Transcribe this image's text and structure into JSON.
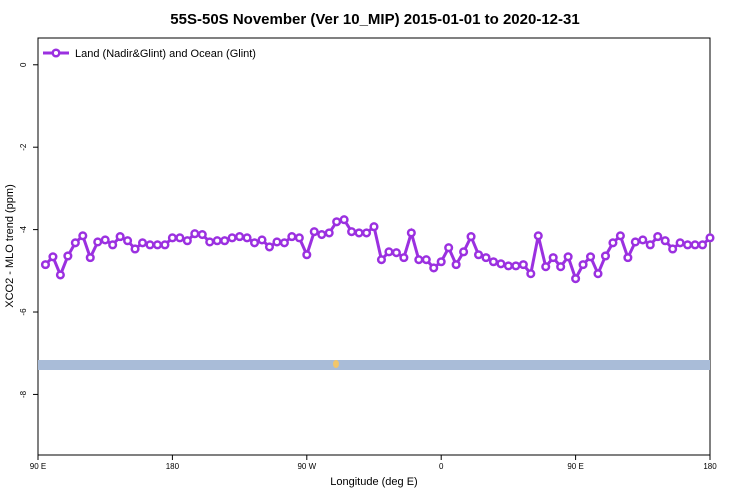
{
  "chart_data": {
    "type": "line",
    "title": "55S-50S November (Ver 10_MIP)   2015-01-01 to 2020-12-31",
    "x_label": "Longitude (deg E)",
    "y_label": "XCO2 - MLO trend (ppm)",
    "xlim": [
      90,
      540
    ],
    "ylim": [
      -9.47,
      0.65
    ],
    "xticks": [
      {
        "value": 90,
        "label": "90 E"
      },
      {
        "value": 180,
        "label": "180"
      },
      {
        "value": 270,
        "label": "90 W"
      },
      {
        "value": 360,
        "label": "0"
      },
      {
        "value": 450,
        "label": "90 E"
      },
      {
        "value": 540,
        "label": "180"
      }
    ],
    "yticks": [
      0,
      -2,
      -4,
      -6,
      -8
    ],
    "legend": "top-left",
    "x": [
      95,
      100,
      105,
      110,
      115,
      120,
      125,
      130,
      135,
      140,
      145,
      150,
      155,
      160,
      165,
      170,
      175,
      180,
      185,
      190,
      195,
      200,
      205,
      210,
      215,
      220,
      225,
      230,
      235,
      240,
      245,
      250,
      255,
      260,
      265,
      270,
      275,
      280,
      285,
      290,
      295,
      300,
      305,
      310,
      315,
      320,
      325,
      330,
      335,
      340,
      345,
      350,
      355,
      360,
      365,
      370,
      375,
      380,
      385,
      390,
      395,
      400,
      405,
      410,
      415,
      420,
      425,
      430,
      435,
      440,
      445,
      450,
      455,
      460,
      465,
      470,
      475,
      480,
      485,
      490,
      495,
      500,
      505,
      510,
      515,
      520,
      525,
      530,
      535,
      540
    ],
    "series": [
      {
        "name": "Land (Nadir&Glint) and Ocean (Glint)",
        "color": "#9b30e0",
        "values": [
          -4.85,
          -4.66,
          -5.1,
          -4.64,
          -4.32,
          -4.15,
          -4.68,
          -4.3,
          -4.25,
          -4.37,
          -4.17,
          -4.27,
          -4.47,
          -4.32,
          -4.37,
          -4.37,
          -4.37,
          -4.2,
          -4.2,
          -4.27,
          -4.1,
          -4.12,
          -4.3,
          -4.27,
          -4.27,
          -4.2,
          -4.17,
          -4.2,
          -4.32,
          -4.25,
          -4.42,
          -4.3,
          -4.32,
          -4.17,
          -4.2,
          -4.61,
          -4.05,
          -4.12,
          -4.08,
          -3.81,
          -3.76,
          -4.05,
          -4.08,
          -4.08,
          -3.93,
          -4.73,
          -4.54,
          -4.56,
          -4.68,
          -4.08,
          -4.73,
          -4.73,
          -4.93,
          -4.78,
          -4.44,
          -4.85,
          -4.54,
          -4.17,
          -4.61,
          -4.68,
          -4.78,
          -4.83,
          -4.88,
          -4.88,
          -4.85,
          -5.07,
          -4.15,
          -4.9,
          -4.68,
          -4.9,
          -4.66,
          -5.19,
          -4.85,
          -4.66,
          -5.07,
          -4.64,
          -4.32,
          -4.15,
          -4.68,
          -4.3,
          -4.25,
          -4.37,
          -4.17,
          -4.27,
          -4.47,
          -4.32,
          -4.37,
          -4.37,
          -4.37,
          -4.2
        ]
      }
    ]
  }
}
